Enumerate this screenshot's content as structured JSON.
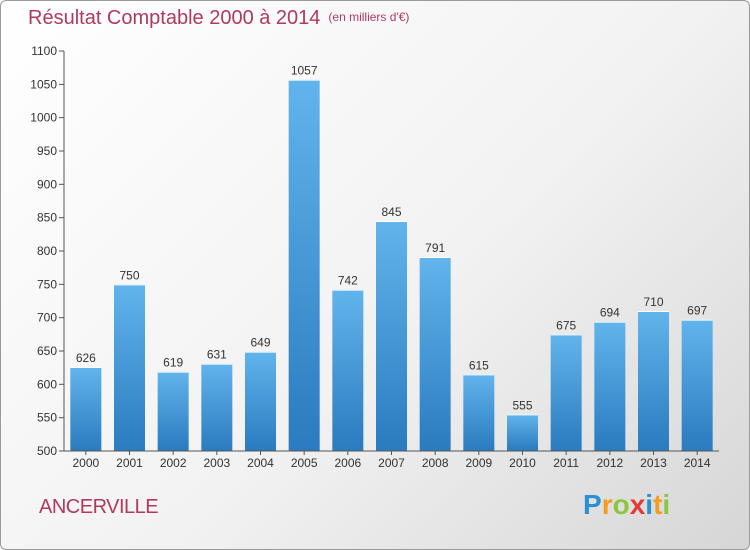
{
  "header": {
    "title": "Résultat Comptable 2000 à 2014",
    "unit": "(en milliers d'€)"
  },
  "commune": "ANCERVILLE",
  "logo": {
    "letters": [
      {
        "char": "P",
        "color": "#2a8fd6"
      },
      {
        "char": "r",
        "color": "#f39c1f"
      },
      {
        "char": "o",
        "color": "#8cc63f"
      },
      {
        "char": "x",
        "color": "#e53935"
      },
      {
        "char": "i",
        "color": "#2a8fd6"
      },
      {
        "char": "t",
        "color": "#f39c1f"
      },
      {
        "char": "i",
        "color": "#8cc63f"
      }
    ]
  },
  "colors": {
    "title": "#b03a5e",
    "bar_light": "#62b4ec",
    "bar_dark": "#2a7bbf",
    "axis": "#555555"
  },
  "chart_data": {
    "type": "bar",
    "title": "Résultat Comptable 2000 à 2014",
    "categories": [
      "2000",
      "2001",
      "2002",
      "2003",
      "2004",
      "2005",
      "2006",
      "2007",
      "2008",
      "2009",
      "2010",
      "2011",
      "2012",
      "2013",
      "2014"
    ],
    "values": [
      626,
      750,
      619,
      631,
      649,
      1057,
      742,
      845,
      791,
      615,
      555,
      675,
      694,
      710,
      697
    ],
    "ylim": [
      500,
      1100
    ],
    "yticks": [
      500,
      550,
      600,
      650,
      700,
      750,
      800,
      850,
      900,
      950,
      1000,
      1050,
      1100
    ],
    "grid": false,
    "data_labels": true
  }
}
